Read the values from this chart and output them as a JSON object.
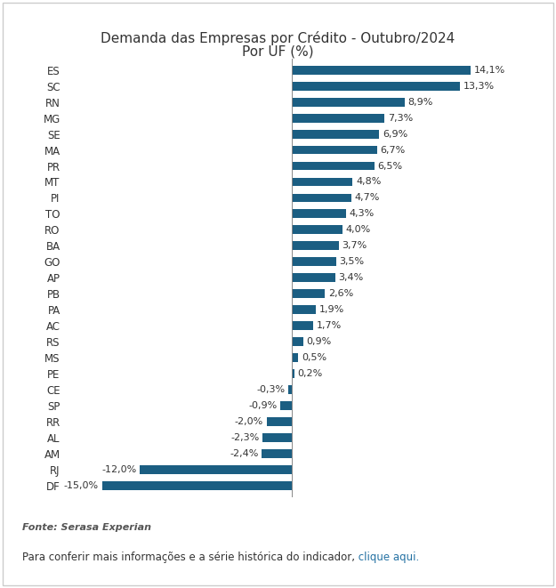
{
  "title_line1": "Demanda das Empresas por Crédito - Outubro/2024",
  "title_line2": "Por UF (%)",
  "categories": [
    "ES",
    "SC",
    "RN",
    "MG",
    "SE",
    "MA",
    "PR",
    "MT",
    "PI",
    "TO",
    "RO",
    "BA",
    "GO",
    "AP",
    "PB",
    "PA",
    "AC",
    "RS",
    "MS",
    "PE",
    "CE",
    "SP",
    "RR",
    "AL",
    "AM",
    "RJ",
    "DF"
  ],
  "values": [
    14.1,
    13.3,
    8.9,
    7.3,
    6.9,
    6.7,
    6.5,
    4.8,
    4.7,
    4.3,
    4.0,
    3.7,
    3.5,
    3.4,
    2.6,
    1.9,
    1.7,
    0.9,
    0.5,
    0.2,
    -0.3,
    -0.9,
    -2.0,
    -2.3,
    -2.4,
    -12.0,
    -15.0
  ],
  "bar_color": "#1b5e82",
  "background_color": "#ffffff",
  "label_color": "#333333",
  "title_color": "#333333",
  "font_size_title": 11,
  "font_size_labels": 8.5,
  "font_size_values": 8,
  "source_text": "Fonte: Serasa Experian",
  "footer_text": "Para conferir mais informações e a série histórica do indicador,",
  "footer_link": " clique aqui.",
  "xlim": [
    -18,
    18
  ],
  "bar_height": 0.55,
  "figsize": [
    6.25,
    6.61
  ],
  "dpi": 100
}
